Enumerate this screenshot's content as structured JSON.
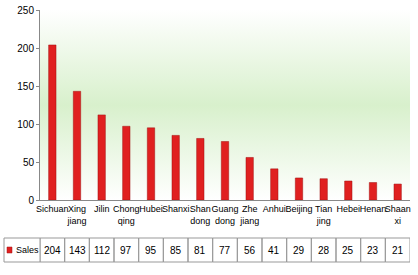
{
  "chart_data": {
    "type": "bar",
    "categories": [
      "Sichuan",
      "Xing jiang",
      "Jilin",
      "Chong qing",
      "Hubei",
      "Shanxi",
      "Shan dong",
      "Guang dong",
      "Zhe jiang",
      "Anhui",
      "Beijing",
      "Tian jing",
      "Hebei",
      "Henan",
      "Shaan xi"
    ],
    "series": [
      {
        "name": "Sales",
        "color": "#e02020",
        "values": [
          204,
          143,
          112,
          97,
          95,
          85,
          81,
          77,
          56,
          41,
          29,
          28,
          25,
          23,
          21
        ]
      }
    ],
    "ylim": [
      0,
      250
    ],
    "yticks": [
      0,
      50,
      100,
      150,
      200,
      250
    ],
    "grid": false
  }
}
